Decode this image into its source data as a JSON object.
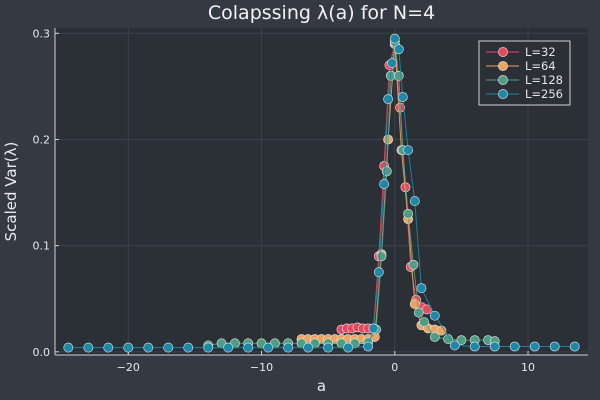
{
  "chart_data": {
    "type": "scatter",
    "title": "Colapssing λ(a) for N=4",
    "xlabel": "a",
    "ylabel": "Scaled Var(λ)",
    "xlim": [
      -25.5,
      14.5
    ],
    "ylim": [
      -0.003,
      0.305
    ],
    "xticks": [
      -20,
      -10,
      0,
      10
    ],
    "xtick_labels": [
      "−20",
      "−10",
      "0",
      "10"
    ],
    "yticks": [
      0.0,
      0.1,
      0.2,
      0.3
    ],
    "ytick_labels": [
      "0.0",
      "0.1",
      "0.2",
      "0.3"
    ],
    "grid": true,
    "legend_position": "top-right",
    "series": [
      {
        "name": "L=32",
        "color": "#e8485e",
        "x": [
          -4.0,
          -3.6,
          -3.2,
          -2.8,
          -2.4,
          -2.0,
          -1.6,
          -1.2,
          -0.8,
          -0.4,
          0.0,
          0.4,
          0.8,
          1.2,
          1.6,
          2.0,
          2.4
        ],
        "y": [
          0.021,
          0.022,
          0.022,
          0.023,
          0.022,
          0.022,
          0.022,
          0.09,
          0.175,
          0.27,
          0.29,
          0.23,
          0.155,
          0.08,
          0.049,
          0.042,
          0.04
        ]
      },
      {
        "name": "L=64",
        "color": "#e9a561",
        "x": [
          -7.0,
          -6.5,
          -6.0,
          -5.5,
          -5.0,
          -4.5,
          -4.0,
          -3.5,
          -3.0,
          -2.5,
          -2.0,
          -1.5,
          -1.0,
          -0.5,
          0.0,
          0.5,
          1.0,
          1.5,
          2.0,
          2.5,
          3.0,
          3.5
        ],
        "y": [
          0.012,
          0.012,
          0.012,
          0.012,
          0.012,
          0.012,
          0.012,
          0.012,
          0.012,
          0.012,
          0.012,
          0.014,
          0.092,
          0.2,
          0.29,
          0.19,
          0.125,
          0.045,
          0.025,
          0.022,
          0.021,
          0.02
        ]
      },
      {
        "name": "L=128",
        "color": "#4f9e83",
        "x": [
          -14.0,
          -13.0,
          -12.0,
          -11.0,
          -10.0,
          -9.0,
          -8.0,
          -7.0,
          -6.0,
          -5.0,
          -4.0,
          -3.0,
          -2.0,
          -1.4,
          -1.0,
          -0.6,
          -0.3,
          0.0,
          0.3,
          0.6,
          1.0,
          1.4,
          1.8,
          2.2,
          3.0,
          4.0,
          5.0,
          6.0,
          7.0,
          7.5
        ],
        "y": [
          0.006,
          0.008,
          0.008,
          0.008,
          0.008,
          0.008,
          0.008,
          0.008,
          0.008,
          0.008,
          0.008,
          0.008,
          0.009,
          0.021,
          0.09,
          0.17,
          0.26,
          0.292,
          0.26,
          0.19,
          0.13,
          0.082,
          0.037,
          0.028,
          0.014,
          0.012,
          0.011,
          0.011,
          0.011,
          0.01
        ]
      },
      {
        "name": "L=256",
        "color": "#1d88a8",
        "x": [
          -24.5,
          -23.0,
          -21.5,
          -20.0,
          -18.5,
          -17.0,
          -15.5,
          -14.0,
          -12.5,
          -11.0,
          -9.5,
          -8.0,
          -6.5,
          -5.0,
          -3.5,
          -2.0,
          -1.6,
          -1.2,
          -0.8,
          -0.5,
          -0.2,
          0.0,
          0.3,
          0.6,
          1.0,
          1.5,
          2.0,
          3.0,
          4.5,
          6.0,
          7.5,
          9.0,
          10.5,
          12.0,
          13.5
        ],
        "y": [
          0.004,
          0.004,
          0.004,
          0.004,
          0.004,
          0.004,
          0.004,
          0.004,
          0.004,
          0.004,
          0.004,
          0.004,
          0.004,
          0.004,
          0.004,
          0.005,
          0.022,
          0.075,
          0.158,
          0.238,
          0.272,
          0.295,
          0.285,
          0.24,
          0.19,
          0.142,
          0.06,
          0.034,
          0.006,
          0.005,
          0.005,
          0.005,
          0.005,
          0.005,
          0.005
        ]
      }
    ]
  }
}
